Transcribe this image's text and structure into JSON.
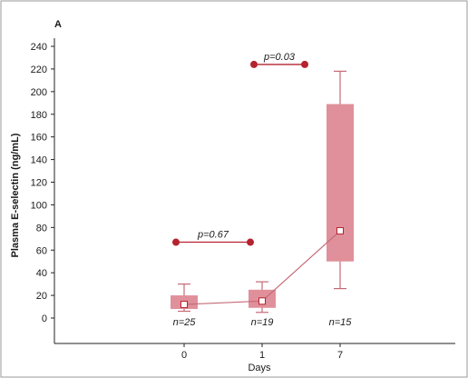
{
  "chart_data": {
    "type": "box",
    "panel_label": "A",
    "xlabel": "Days",
    "ylabel": "Plasma E-selectin (ng/mL)",
    "ylim": [
      0,
      240
    ],
    "yticks": [
      0,
      20,
      40,
      60,
      80,
      100,
      120,
      140,
      160,
      180,
      200,
      220,
      240
    ],
    "categories": [
      "0",
      "1",
      "7"
    ],
    "boxes": [
      {
        "category": "0",
        "whisker_low": 6,
        "q1": 8,
        "median_marker": 12,
        "q3": 20,
        "whisker_high": 30,
        "n_label": "n=25"
      },
      {
        "category": "1",
        "whisker_low": 5,
        "q1": 9,
        "median_marker": 15,
        "q3": 25,
        "whisker_high": 32,
        "n_label": "n=19"
      },
      {
        "category": "7",
        "whisker_low": 26,
        "q1": 50,
        "median_marker": 77,
        "q3": 189,
        "whisker_high": 218,
        "n_label": "n=15"
      }
    ],
    "comparisons": [
      {
        "from": "0",
        "to": "1",
        "y": 67,
        "label": "p=0.67"
      },
      {
        "from": "1",
        "to": "7",
        "y": 224,
        "label": "p=0.03"
      }
    ],
    "colors": {
      "box_fill": "#e0909a",
      "box_line": "#c46a76",
      "marker": "#b5232e",
      "axis": "#222222",
      "frame": "#9a9a9a"
    }
  }
}
